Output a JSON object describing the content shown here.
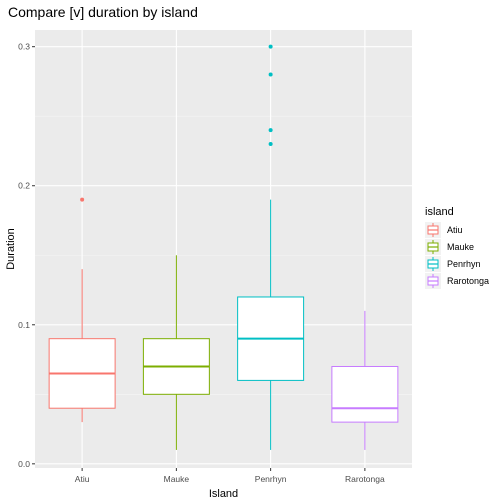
{
  "chart_data": {
    "type": "boxplot",
    "title": "Compare [v] duration by island",
    "xlabel": "Island",
    "ylabel": "Duration",
    "ylim": [
      -0.003,
      0.312
    ],
    "yticks": [
      0.0,
      0.1,
      0.2,
      0.3
    ],
    "ytick_labels": [
      "0.0",
      "0.1",
      "0.2",
      "0.3"
    ],
    "grid": true,
    "legend": {
      "title": "island",
      "position": "right"
    },
    "categories": [
      "Atiu",
      "Mauke",
      "Penrhyn",
      "Rarotonga"
    ],
    "series": [
      {
        "name": "Atiu",
        "color": "#F8766D",
        "whisker_low": 0.03,
        "q1": 0.04,
        "median": 0.065,
        "q3": 0.09,
        "whisker_high": 0.14,
        "outliers": [
          0.19
        ]
      },
      {
        "name": "Mauke",
        "color": "#7CAE00",
        "whisker_low": 0.01,
        "q1": 0.05,
        "median": 0.07,
        "q3": 0.09,
        "whisker_high": 0.15,
        "outliers": []
      },
      {
        "name": "Penrhyn",
        "color": "#00BFC4",
        "whisker_low": 0.01,
        "q1": 0.06,
        "median": 0.09,
        "q3": 0.12,
        "whisker_high": 0.19,
        "outliers": [
          0.23,
          0.24,
          0.28,
          0.3
        ]
      },
      {
        "name": "Rarotonga",
        "color": "#C77CFF",
        "whisker_low": 0.01,
        "q1": 0.03,
        "median": 0.04,
        "q3": 0.07,
        "whisker_high": 0.11,
        "outliers": []
      }
    ]
  }
}
